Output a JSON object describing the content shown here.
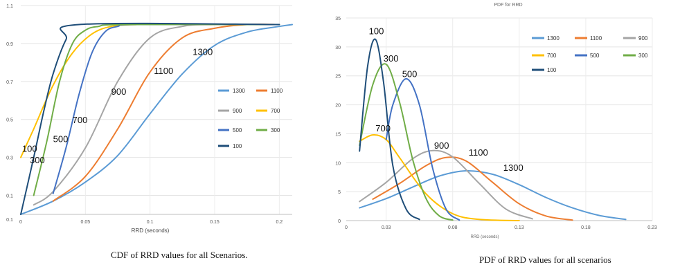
{
  "captions": {
    "left": "CDF of RRD values for all Scenarios.",
    "right": "PDF of RRD values for all scenarios"
  },
  "chart_data": [
    {
      "type": "line",
      "title": "",
      "xlabel": "RRD (seconds)",
      "ylabel": "",
      "xlim": [
        0,
        0.21
      ],
      "ylim": [
        0,
        1.1
      ],
      "x_ticks": [
        "0",
        "0.05",
        "0.1",
        "0.15",
        "0.2"
      ],
      "y_ticks": [
        "0.1",
        "0.1",
        "0.3",
        "0.5",
        "0.7",
        "0.9",
        "1.1"
      ],
      "grid": true,
      "legend": "right",
      "series": [
        {
          "name": "1300",
          "color": "#5b9bd5",
          "x": [
            0.0,
            0.025,
            0.05,
            0.075,
            0.1,
            0.125,
            0.15,
            0.175,
            0.2,
            0.21
          ],
          "y": [
            0.0,
            0.07,
            0.17,
            0.31,
            0.53,
            0.74,
            0.89,
            0.96,
            0.99,
            1.0
          ]
        },
        {
          "name": "1100",
          "color": "#ed7d31",
          "x": [
            0.025,
            0.05,
            0.075,
            0.1,
            0.125,
            0.15,
            0.175,
            0.2
          ],
          "y": [
            0.07,
            0.2,
            0.45,
            0.75,
            0.93,
            0.98,
            1.0,
            1.0
          ]
        },
        {
          "name": "900",
          "color": "#a5a5a5",
          "x": [
            0.01,
            0.025,
            0.05,
            0.075,
            0.1,
            0.125,
            0.15,
            0.2
          ],
          "y": [
            0.05,
            0.12,
            0.35,
            0.7,
            0.93,
            0.99,
            1.0,
            1.0
          ]
        },
        {
          "name": "700",
          "color": "#ffc000",
          "x": [
            0.0,
            0.01,
            0.025,
            0.04,
            0.055,
            0.07,
            0.09,
            0.11,
            0.2
          ],
          "y": [
            0.3,
            0.45,
            0.68,
            0.85,
            0.95,
            0.99,
            1.0,
            1.0,
            1.0
          ]
        },
        {
          "name": "500",
          "color": "#4472c4",
          "x": [
            0.025,
            0.035,
            0.045,
            0.055,
            0.065,
            0.075,
            0.09,
            0.2
          ],
          "y": [
            0.11,
            0.35,
            0.63,
            0.85,
            0.96,
            0.99,
            1.0,
            1.0
          ]
        },
        {
          "name": "300",
          "color": "#70ad47",
          "x": [
            0.01,
            0.02,
            0.03,
            0.04,
            0.05,
            0.06,
            0.08,
            0.2
          ],
          "y": [
            0.1,
            0.38,
            0.7,
            0.9,
            0.97,
            0.99,
            1.0,
            1.0
          ]
        },
        {
          "name": "100",
          "color": "#1f4e79",
          "x": [
            0.0,
            0.01,
            0.018,
            0.025,
            0.035,
            0.045,
            0.2
          ],
          "y": [
            0.0,
            0.3,
            0.55,
            0.74,
            0.92,
            1.0,
            1.0
          ]
        }
      ],
      "annotations": [
        {
          "text": "1300",
          "x": 0.133,
          "y": 0.84
        },
        {
          "text": "1100",
          "x": 0.103,
          "y": 0.74
        },
        {
          "text": "900",
          "x": 0.07,
          "y": 0.63
        },
        {
          "text": "700",
          "x": 0.04,
          "y": 0.48
        },
        {
          "text": "500",
          "x": 0.025,
          "y": 0.38
        },
        {
          "text": "100",
          "x": 0.001,
          "y": 0.33
        },
        {
          "text": "300",
          "x": 0.007,
          "y": 0.27
        }
      ]
    },
    {
      "type": "line",
      "title": "PDF for RRD",
      "xlabel": "RRD (seconds)",
      "ylabel": "",
      "xlim": [
        0,
        0.23
      ],
      "ylim": [
        0,
        35
      ],
      "x_ticks": [
        "0",
        "0.03",
        "0.08",
        "0.13",
        "0.18",
        "0.23"
      ],
      "y_ticks": [
        "0",
        "5",
        "10",
        "15",
        "20",
        "25",
        "30",
        "35"
      ],
      "grid": true,
      "legend": "top-right",
      "series": [
        {
          "name": "1300",
          "color": "#5b9bd5",
          "x": [
            0.01,
            0.03,
            0.05,
            0.07,
            0.09,
            0.11,
            0.13,
            0.15,
            0.17,
            0.19,
            0.21
          ],
          "y": [
            2.2,
            3.8,
            5.8,
            7.7,
            8.6,
            8.0,
            6.2,
            4.0,
            2.2,
            0.9,
            0.2
          ]
        },
        {
          "name": "1100",
          "color": "#ed7d31",
          "x": [
            0.02,
            0.04,
            0.06,
            0.075,
            0.09,
            0.11,
            0.13,
            0.15,
            0.17
          ],
          "y": [
            3.7,
            6.4,
            9.5,
            10.9,
            10.3,
            6.6,
            2.9,
            0.8,
            0.1
          ]
        },
        {
          "name": "900",
          "color": "#a5a5a5",
          "x": [
            0.01,
            0.03,
            0.05,
            0.065,
            0.08,
            0.1,
            0.12,
            0.14
          ],
          "y": [
            3.3,
            6.6,
            10.7,
            12.1,
            11.0,
            6.4,
            2.0,
            0.3
          ]
        },
        {
          "name": "700",
          "color": "#ffc000",
          "x": [
            0.01,
            0.02,
            0.03,
            0.04,
            0.06,
            0.08,
            0.1,
            0.13
          ],
          "y": [
            13.7,
            14.8,
            14.0,
            10.9,
            4.6,
            1.2,
            0.2,
            0.0
          ]
        },
        {
          "name": "500",
          "color": "#4472c4",
          "x": [
            0.03,
            0.035,
            0.045,
            0.055,
            0.065,
            0.075,
            0.085
          ],
          "y": [
            14.0,
            20.0,
            24.5,
            20.0,
            9.0,
            2.0,
            0.1
          ]
        },
        {
          "name": "300",
          "color": "#70ad47",
          "x": [
            0.01,
            0.02,
            0.03,
            0.04,
            0.05,
            0.06,
            0.07,
            0.08
          ],
          "y": [
            13.0,
            23.5,
            27.0,
            20.5,
            10.5,
            3.8,
            0.8,
            0.1
          ]
        },
        {
          "name": "100",
          "color": "#1f4e79",
          "x": [
            0.01,
            0.016,
            0.022,
            0.028,
            0.035,
            0.045,
            0.055
          ],
          "y": [
            12.0,
            26.5,
            31.3,
            24.0,
            9.5,
            2.0,
            0.2
          ]
        }
      ],
      "annotations": [
        {
          "text": "100",
          "x": 0.017,
          "y": 32.2
        },
        {
          "text": "300",
          "x": 0.028,
          "y": 27.5
        },
        {
          "text": "500",
          "x": 0.042,
          "y": 24.8
        },
        {
          "text": "700",
          "x": 0.022,
          "y": 15.4
        },
        {
          "text": "900",
          "x": 0.066,
          "y": 12.4
        },
        {
          "text": "1100",
          "x": 0.092,
          "y": 11.2
        },
        {
          "text": "1300",
          "x": 0.118,
          "y": 8.6
        }
      ]
    }
  ]
}
